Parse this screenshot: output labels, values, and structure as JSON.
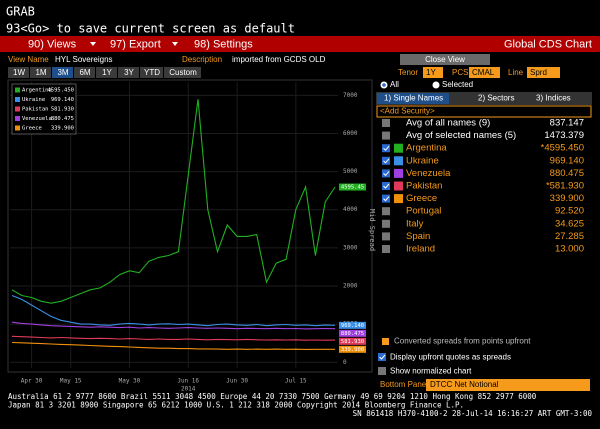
{
  "header": {
    "title": "GRAB",
    "command": "93<Go> to save current screen as default"
  },
  "menu": {
    "items": [
      "90) Views",
      "97) Export",
      "98) Settings"
    ],
    "title": "Global CDS Chart"
  },
  "view": {
    "name_label": "View Name",
    "name": "HYL Sovereigns",
    "description_label": "Description",
    "description": "imported from GCDS OLD",
    "close": "Close View"
  },
  "ranges": {
    "buttons": [
      "1W",
      "1M",
      "3M",
      "6M",
      "1Y",
      "3Y",
      "YTD",
      "Custom"
    ],
    "active": 2
  },
  "settings": {
    "tenor_label": "Tenor",
    "tenor": "1Y",
    "pcs_label": "PCS",
    "pcs": "CMAL",
    "line_label": "Line",
    "line": "Sprd",
    "radio": [
      "All",
      "Selected"
    ]
  },
  "tabs": [
    "1) Single Names",
    "2) Sectors",
    "3) Indices"
  ],
  "list": {
    "add": "<Add Security>",
    "rows": [
      {
        "name": "Avg of all names (9)",
        "value": "837.147",
        "checked": false
      },
      {
        "name": "Avg of selected names (5)",
        "value": "1473.379",
        "checked": false
      },
      {
        "name": "Argentina",
        "value": "*4595.450",
        "checked": true,
        "color": "#22b022"
      },
      {
        "name": "Ukraine",
        "value": "969.140",
        "checked": true,
        "color": "#3a8fe8"
      },
      {
        "name": "Venezuela",
        "value": "880.475",
        "checked": true,
        "color": "#a040e0"
      },
      {
        "name": "Pakistan",
        "value": "*581.930",
        "checked": true,
        "color": "#e03a5a"
      },
      {
        "name": "Greece",
        "value": "339.900",
        "checked": true,
        "color": "#f0900a"
      },
      {
        "name": "Portugal",
        "value": "92.520",
        "checked": false
      },
      {
        "name": "Italy",
        "value": "34.625",
        "checked": false
      },
      {
        "name": "Spain",
        "value": "27.285",
        "checked": false
      },
      {
        "name": "Ireland",
        "value": "13.000",
        "checked": false
      }
    ]
  },
  "options": {
    "converted": "Converted spreads from points upfront",
    "display_upfront": "Display upfront quotes as spreads",
    "normalized": "Show normalized chart",
    "bottom_label": "Bottom Panel",
    "bottom_value": "DTCC Net Notional"
  },
  "footer": [
    "Australia 61 2 9777 8600 Brazil 5511 3048 4500 Europe 44 20 7330 7500 Germany 49 69 9204 1210 Hong Kong 852 2977 6000",
    "Japan 81 3 3201 8900        Singapore 65 6212 1000        U.S. 1 212 318 2000        Copyright 2014 Bloomberg Finance L.P.",
    "SN 861418 H370-4100-2 28-Jul-14 16:16:27 ART   GMT-3:00"
  ],
  "chart_data": {
    "type": "line",
    "y_label": "Mid Spread",
    "year_label": "2014",
    "categories": [
      null,
      null,
      "Apr 30",
      null,
      null,
      null,
      "May 15",
      null,
      null,
      null,
      null,
      null,
      "May 30",
      null,
      null,
      null,
      null,
      null,
      "Jun 16",
      null,
      null,
      null,
      null,
      "Jun 30",
      null,
      null,
      null,
      null,
      null,
      "Jul 15",
      null,
      null,
      null,
      null
    ],
    "ylim": [
      -150,
      7350
    ],
    "yticks": [
      0,
      1000,
      2000,
      3000,
      4000,
      5000,
      6000,
      7000
    ],
    "grid": true,
    "series": [
      {
        "name": "Argentina",
        "color": "#22b022",
        "legend_value": "4595.450",
        "end_label": "4595.45",
        "values": [
          1900,
          1750,
          1700,
          1600,
          1550,
          1600,
          1700,
          1800,
          1900,
          1950,
          2100,
          2300,
          2400,
          2350,
          2650,
          2750,
          2800,
          2900,
          4900,
          6900,
          4000,
          2900,
          3600,
          3300,
          3300,
          3350,
          2100,
          2600,
          2700,
          4000,
          4600,
          2800,
          4200,
          4595.45
        ]
      },
      {
        "name": "Ukraine",
        "color": "#3a8fe8",
        "legend_value": "969.140",
        "end_label": "969.140",
        "values": [
          1750,
          1650,
          1500,
          1350,
          1200,
          1100,
          1050,
          1000,
          1000,
          980,
          970,
          1000,
          1020,
          1000,
          980,
          1000,
          1010,
          990,
          1000,
          980,
          960,
          990,
          1000,
          980,
          970,
          990,
          960,
          980,
          990,
          970,
          980,
          960,
          975,
          969.14
        ]
      },
      {
        "name": "Pakistan",
        "color": "#e03a5a",
        "legend_value": "581.930",
        "end_label": "581.930",
        "values": [
          680,
          670,
          660,
          650,
          640,
          650,
          640,
          630,
          620,
          630,
          620,
          610,
          620,
          610,
          600,
          610,
          600,
          600,
          610,
          600,
          590,
          600,
          595,
          590,
          600,
          590,
          585,
          590,
          585,
          590,
          580,
          585,
          580,
          581.93
        ]
      },
      {
        "name": "Venezuela",
        "color": "#a040e0",
        "legend_value": "880.475",
        "end_label": "880.475",
        "values": [
          1050,
          1020,
          1000,
          980,
          960,
          950,
          940,
          930,
          920,
          930,
          920,
          910,
          920,
          900,
          910,
          900,
          890,
          900,
          910,
          900,
          890,
          900,
          890,
          880,
          890,
          885,
          880,
          890,
          880,
          885,
          875,
          880,
          885,
          880.475
        ]
      },
      {
        "name": "Greece",
        "color": "#f0900a",
        "legend_value": "339.900",
        "end_label": "339.900",
        "values": [
          520,
          510,
          500,
          490,
          480,
          470,
          460,
          450,
          440,
          430,
          420,
          410,
          400,
          390,
          380,
          370,
          370,
          360,
          360,
          350,
          350,
          345,
          340,
          345,
          340,
          345,
          340,
          345,
          340,
          342,
          338,
          340,
          341,
          339.9
        ]
      }
    ]
  }
}
